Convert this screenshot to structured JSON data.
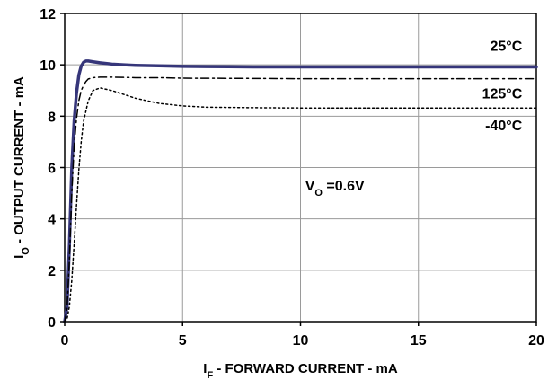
{
  "chart_data": {
    "type": "line",
    "xlabel": {
      "main": "I",
      "sub": "F",
      "rest": " - FORWARD CURRENT - mA"
    },
    "ylabel": {
      "main": "I",
      "sub": "O",
      "rest": " - OUTPUT CURRENT - mA"
    },
    "xlim": [
      0,
      20
    ],
    "ylim": [
      0,
      12
    ],
    "xticks": [
      0,
      5,
      10,
      15,
      20
    ],
    "yticks": [
      0,
      2,
      4,
      6,
      8,
      10,
      12
    ],
    "grid": true,
    "annotation": {
      "main": "V",
      "sub": "O",
      "rest": " =0.6V",
      "x": 10.2,
      "y": 5.1
    },
    "series": [
      {
        "name": "25°C",
        "color": "#36367a",
        "style": "solid",
        "label_x": 19.4,
        "label_y": 10.55,
        "x": [
          0,
          0.1,
          0.2,
          0.3,
          0.4,
          0.5,
          0.6,
          0.7,
          0.8,
          0.9,
          1.0,
          1.2,
          1.5,
          2,
          2.5,
          3,
          4,
          5,
          6,
          8,
          10,
          15,
          20
        ],
        "y": [
          0,
          0.6,
          3.0,
          6.0,
          7.8,
          8.9,
          9.6,
          9.95,
          10.1,
          10.15,
          10.15,
          10.12,
          10.08,
          10.03,
          10.0,
          9.98,
          9.96,
          9.94,
          9.93,
          9.92,
          9.92,
          9.92,
          9.92
        ]
      },
      {
        "name": "125°C",
        "color": "#000000",
        "style": "dashdot",
        "label_x": 19.4,
        "label_y": 8.7,
        "x": [
          0,
          0.1,
          0.2,
          0.3,
          0.4,
          0.5,
          0.6,
          0.7,
          0.8,
          0.9,
          1.0,
          1.2,
          1.5,
          2,
          3,
          4,
          5,
          8,
          10,
          15,
          20
        ],
        "y": [
          0,
          0.5,
          2.4,
          5.0,
          6.8,
          7.9,
          8.6,
          9.0,
          9.2,
          9.35,
          9.45,
          9.5,
          9.52,
          9.52,
          9.5,
          9.5,
          9.48,
          9.47,
          9.46,
          9.46,
          9.46
        ]
      },
      {
        "name": "-40°C",
        "color": "#000000",
        "style": "dotted",
        "label_x": 19.4,
        "label_y": 7.45,
        "x": [
          0,
          0.1,
          0.2,
          0.3,
          0.4,
          0.5,
          0.6,
          0.7,
          0.8,
          1.0,
          1.2,
          1.5,
          2,
          2.5,
          3,
          4,
          5,
          6,
          8,
          10,
          15,
          20
        ],
        "y": [
          0,
          0.1,
          0.6,
          1.6,
          3.0,
          4.5,
          5.9,
          7.0,
          7.8,
          8.6,
          9.0,
          9.1,
          9.0,
          8.85,
          8.7,
          8.5,
          8.4,
          8.35,
          8.33,
          8.32,
          8.32,
          8.32
        ]
      }
    ]
  }
}
